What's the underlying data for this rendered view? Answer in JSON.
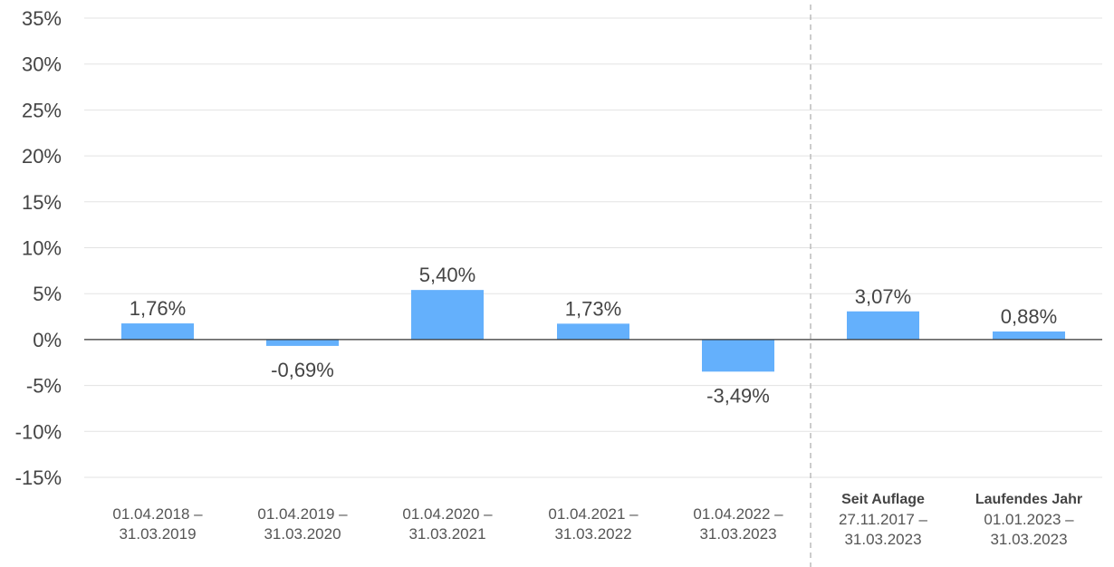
{
  "chart_data": {
    "type": "bar",
    "title": "",
    "xlabel": "",
    "ylabel": "",
    "ylim": [
      -15,
      35
    ],
    "y_ticks": [
      "35%",
      "30%",
      "25%",
      "20%",
      "15%",
      "10%",
      "5%",
      "0%",
      "-5%",
      "-10%",
      "-15%"
    ],
    "y_tick_values": [
      35,
      30,
      25,
      20,
      15,
      10,
      5,
      0,
      -5,
      -10,
      -15
    ],
    "grid": true,
    "bar_color": "#64b0fc",
    "categories": [
      {
        "lines": [
          "01.04.2018 –",
          "31.03.2019"
        ],
        "heading": ""
      },
      {
        "lines": [
          "01.04.2019 –",
          "31.03.2020"
        ],
        "heading": ""
      },
      {
        "lines": [
          "01.04.2020 –",
          "31.03.2021"
        ],
        "heading": ""
      },
      {
        "lines": [
          "01.04.2021 –",
          "31.03.2022"
        ],
        "heading": ""
      },
      {
        "lines": [
          "01.04.2022 –",
          "31.03.2023"
        ],
        "heading": ""
      },
      {
        "lines": [
          "27.11.2017 –",
          "31.03.2023"
        ],
        "heading": "Seit Auflage"
      },
      {
        "lines": [
          "01.01.2023 –",
          "31.03.2023"
        ],
        "heading": "Laufendes Jahr"
      }
    ],
    "values": [
      1.76,
      -0.69,
      5.4,
      1.73,
      -3.49,
      3.07,
      0.88
    ],
    "value_labels": [
      "1,76%",
      "-0,69%",
      "5,40%",
      "1,73%",
      "-3,49%",
      "3,07%",
      "0,88%"
    ],
    "separator_after_index": 4
  }
}
